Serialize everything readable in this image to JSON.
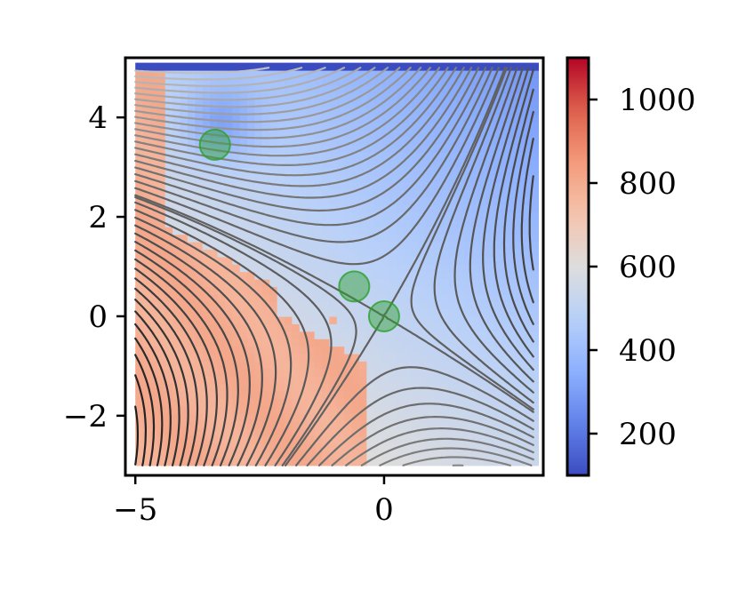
{
  "chart_data": {
    "type": "heatmap",
    "title": "",
    "xlabel": "",
    "ylabel": "",
    "xlim": [
      -5.2,
      3.2
    ],
    "ylim": [
      -3.2,
      5.2
    ],
    "x_ticks": [
      -5,
      0
    ],
    "x_tick_labels": [
      "−5",
      "0"
    ],
    "y_ticks": [
      -2,
      0,
      2,
      4
    ],
    "y_tick_labels": [
      "−2",
      "0",
      "2",
      "4"
    ],
    "grid": false,
    "heatmap": {
      "x_range": [
        -5.0,
        3.0
      ],
      "y_range": [
        -3.0,
        5.0
      ],
      "resolution": 0.15,
      "colormap": "coolwarm",
      "approx_value_range": [
        100,
        1100
      ]
    },
    "colorbar": {
      "vmin": 100,
      "vmax": 1100,
      "ticks": [
        200,
        400,
        600,
        800,
        1000
      ],
      "tick_labels": [
        "200",
        "400",
        "600",
        "800",
        "1000"
      ],
      "colormap": "coolwarm"
    },
    "contours": {
      "color_light": "#c8c8c8",
      "color_dark": "#1e1e1e",
      "saddle_level_approx": 0.2
    },
    "markers": [
      {
        "x": -3.4,
        "y": 3.45
      },
      {
        "x": -0.6,
        "y": 0.6
      },
      {
        "x": 0.0,
        "y": 0.0
      }
    ],
    "marker_color": "#2ca02c"
  }
}
